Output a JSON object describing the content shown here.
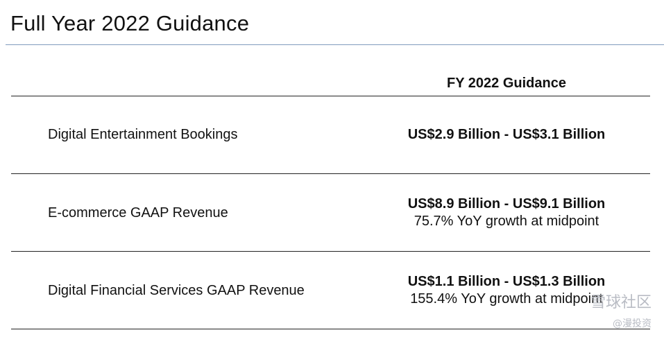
{
  "title": "Full Year 2022 Guidance",
  "column_header": "FY 2022 Guidance",
  "rows": [
    {
      "label": "Digital Entertainment Bookings",
      "value": "US$2.9 Billion - US$3.1 Billion",
      "note": ""
    },
    {
      "label": "E-commerce GAAP Revenue",
      "value": "US$8.9 Billion - US$9.1 Billion",
      "note": "75.7% YoY growth at midpoint"
    },
    {
      "label": "Digital Financial Services GAAP Revenue",
      "value": "US$1.1 Billion - US$1.3 Billion",
      "note": "155.4% YoY growth at midpoint"
    }
  ],
  "watermark": {
    "line1": "雪球社区",
    "line2": "@漫投资"
  }
}
